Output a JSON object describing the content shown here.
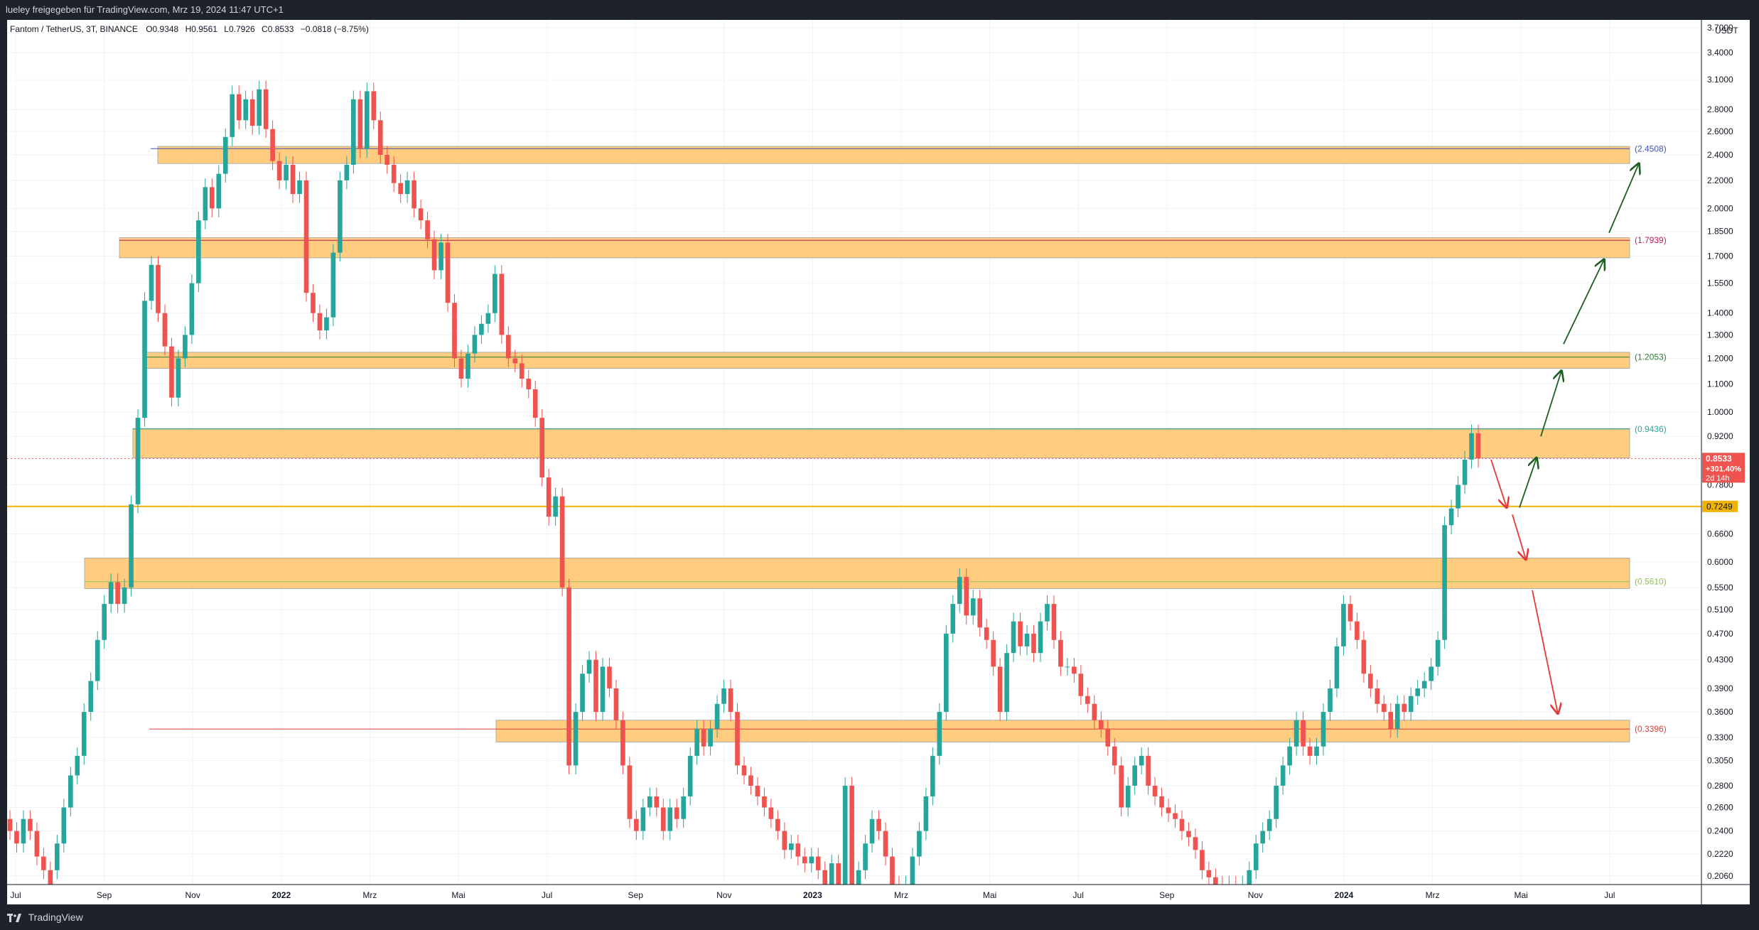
{
  "header": {
    "text": "lueley freigegeben für TradingView.com, Mrz 19, 2024 11:47 UTC+1"
  },
  "footer": {
    "brand": "TradingView"
  },
  "legend": {
    "symbol": "Fantom / TetherUS, 3T, BINANCE",
    "open": "O0.9348",
    "high": "H0.9561",
    "low": "L0.7926",
    "close": "C0.8533",
    "change": "−0.0818 (−8.75%)"
  },
  "price_tag": {
    "price": "0.8533",
    "change": "+301.40%",
    "countdown": "2d 14h"
  },
  "colors": {
    "up": "#26a69a",
    "down": "#ef5350",
    "zone": "#ffcc80",
    "hline": "#f0b400",
    "arrow_up": "#1b5e20",
    "arrow_down": "#e53935"
  },
  "chart_data": {
    "type": "candlestick",
    "currency": "USDT",
    "y_scale": "log",
    "ylim": [
      0.2,
      3.8
    ],
    "y_ticks": [
      "3.7000",
      "3.4000",
      "3.1000",
      "2.8000",
      "2.6000",
      "2.4000",
      "2.2000",
      "2.0000",
      "1.8500",
      "1.7000",
      "1.5500",
      "1.4000",
      "1.3000",
      "1.2000",
      "1.1000",
      "1.0000",
      "0.9200",
      "0.7800",
      "0.6600",
      "0.6000",
      "0.5500",
      "0.5100",
      "0.4700",
      "0.4300",
      "0.3900",
      "0.3600",
      "0.3300",
      "0.3050",
      "0.2800",
      "0.2600",
      "0.2400",
      "0.2220",
      "0.2060"
    ],
    "x_ticks": [
      "Jul",
      "Sep",
      "Nov",
      "2022",
      "Mrz",
      "Mai",
      "Jul",
      "Sep",
      "Nov",
      "2023",
      "Mrz",
      "Mai",
      "Jul",
      "Sep",
      "Nov",
      "2024",
      "Mrz",
      "Mai",
      "Jul"
    ],
    "levels": [
      {
        "label": "(2.4508)",
        "value": 2.4508,
        "color": "#3f51b5"
      },
      {
        "label": "(1.7939)",
        "value": 1.7939,
        "color": "#c2185b"
      },
      {
        "label": "(1.2053)",
        "value": 1.2053,
        "color": "#2e7d32"
      },
      {
        "label": "(0.9436)",
        "value": 0.9436,
        "color": "#26a69a"
      },
      {
        "label": "(0.5610)",
        "value": 0.561,
        "color": "#8bc34a"
      },
      {
        "label": "(0.3396)",
        "value": 0.3396,
        "color": "#e53935"
      }
    ],
    "zones": [
      {
        "low": 2.33,
        "high": 2.47
      },
      {
        "low": 1.69,
        "high": 1.81
      },
      {
        "low": 1.16,
        "high": 1.225
      },
      {
        "low": 0.855,
        "high": 0.945
      },
      {
        "low": 0.548,
        "high": 0.608
      },
      {
        "low": 0.325,
        "high": 0.35
      }
    ],
    "horizontal_line": {
      "label": "0.7249",
      "value": 0.7249
    },
    "last_price": 0.8533,
    "candles": [
      [
        0.25,
        0.24
      ],
      [
        0.24,
        0.23
      ],
      [
        0.23,
        0.25
      ],
      [
        0.25,
        0.24
      ],
      [
        0.24,
        0.22
      ],
      [
        0.22,
        0.21
      ],
      [
        0.21,
        0.2
      ],
      [
        0.21,
        0.23
      ],
      [
        0.23,
        0.26
      ],
      [
        0.26,
        0.29
      ],
      [
        0.29,
        0.31
      ],
      [
        0.31,
        0.36
      ],
      [
        0.36,
        0.4
      ],
      [
        0.4,
        0.46
      ],
      [
        0.46,
        0.52
      ],
      [
        0.52,
        0.56
      ],
      [
        0.56,
        0.52
      ],
      [
        0.52,
        0.55
      ],
      [
        0.55,
        0.73
      ],
      [
        0.73,
        0.98
      ],
      [
        0.98,
        1.46
      ],
      [
        1.46,
        1.65
      ],
      [
        1.65,
        1.4
      ],
      [
        1.4,
        1.25
      ],
      [
        1.25,
        1.05
      ],
      [
        1.05,
        1.2
      ],
      [
        1.2,
        1.3
      ],
      [
        1.3,
        1.55
      ],
      [
        1.55,
        1.92
      ],
      [
        1.92,
        2.15
      ],
      [
        2.15,
        2.0
      ],
      [
        2.0,
        2.25
      ],
      [
        2.25,
        2.55
      ],
      [
        2.55,
        2.95
      ],
      [
        2.95,
        2.7
      ],
      [
        2.7,
        2.9
      ],
      [
        2.9,
        2.65
      ],
      [
        2.65,
        3.0
      ],
      [
        3.0,
        2.62
      ],
      [
        2.62,
        2.35
      ],
      [
        2.35,
        2.2
      ],
      [
        2.2,
        2.32
      ],
      [
        2.32,
        2.1
      ],
      [
        2.1,
        2.2
      ],
      [
        2.2,
        1.5
      ],
      [
        1.5,
        1.4
      ],
      [
        1.4,
        1.32
      ],
      [
        1.32,
        1.38
      ],
      [
        1.38,
        1.72
      ],
      [
        1.72,
        2.2
      ],
      [
        2.2,
        2.32
      ],
      [
        2.32,
        2.9
      ],
      [
        2.9,
        2.45
      ],
      [
        2.45,
        2.98
      ],
      [
        2.98,
        2.7
      ],
      [
        2.7,
        2.4
      ],
      [
        2.4,
        2.32
      ],
      [
        2.32,
        2.18
      ],
      [
        2.18,
        2.1
      ],
      [
        2.1,
        2.2
      ],
      [
        2.2,
        2.0
      ],
      [
        2.0,
        1.92
      ],
      [
        1.92,
        1.8
      ],
      [
        1.8,
        1.62
      ],
      [
        1.62,
        1.78
      ],
      [
        1.78,
        1.45
      ],
      [
        1.45,
        1.2
      ],
      [
        1.2,
        1.12
      ],
      [
        1.12,
        1.22
      ],
      [
        1.22,
        1.3
      ],
      [
        1.3,
        1.35
      ],
      [
        1.35,
        1.4
      ],
      [
        1.4,
        1.6
      ],
      [
        1.6,
        1.3
      ],
      [
        1.3,
        1.2
      ],
      [
        1.2,
        1.18
      ],
      [
        1.18,
        1.12
      ],
      [
        1.12,
        1.08
      ],
      [
        1.08,
        0.98
      ],
      [
        0.98,
        0.8
      ],
      [
        0.8,
        0.7
      ],
      [
        0.7,
        0.75
      ],
      [
        0.75,
        0.55
      ],
      [
        0.55,
        0.3
      ],
      [
        0.3,
        0.36
      ],
      [
        0.36,
        0.41
      ],
      [
        0.41,
        0.43
      ],
      [
        0.43,
        0.36
      ],
      [
        0.36,
        0.42
      ],
      [
        0.42,
        0.39
      ],
      [
        0.39,
        0.35
      ],
      [
        0.35,
        0.3
      ],
      [
        0.3,
        0.25
      ],
      [
        0.25,
        0.24
      ],
      [
        0.24,
        0.26
      ],
      [
        0.26,
        0.27
      ],
      [
        0.27,
        0.26
      ],
      [
        0.26,
        0.24
      ],
      [
        0.24,
        0.26
      ],
      [
        0.26,
        0.25
      ],
      [
        0.25,
        0.27
      ],
      [
        0.27,
        0.31
      ],
      [
        0.31,
        0.34
      ],
      [
        0.34,
        0.32
      ],
      [
        0.32,
        0.34
      ],
      [
        0.34,
        0.37
      ],
      [
        0.37,
        0.39
      ],
      [
        0.39,
        0.36
      ],
      [
        0.36,
        0.3
      ],
      [
        0.3,
        0.29
      ],
      [
        0.29,
        0.28
      ],
      [
        0.28,
        0.27
      ],
      [
        0.27,
        0.26
      ],
      [
        0.26,
        0.25
      ],
      [
        0.25,
        0.24
      ],
      [
        0.24,
        0.225
      ],
      [
        0.225,
        0.23
      ],
      [
        0.23,
        0.22
      ],
      [
        0.22,
        0.215
      ],
      [
        0.215,
        0.22
      ],
      [
        0.22,
        0.21
      ],
      [
        0.21,
        0.2
      ],
      [
        0.2,
        0.215
      ],
      [
        0.215,
        0.2
      ],
      [
        0.2,
        0.28
      ],
      [
        0.28,
        0.2
      ],
      [
        0.2,
        0.21
      ],
      [
        0.21,
        0.23
      ],
      [
        0.23,
        0.25
      ],
      [
        0.25,
        0.24
      ],
      [
        0.24,
        0.22
      ],
      [
        0.22,
        0.2
      ],
      [
        0.2,
        0.195
      ],
      [
        0.195,
        0.2
      ],
      [
        0.2,
        0.22
      ],
      [
        0.22,
        0.24
      ],
      [
        0.24,
        0.27
      ],
      [
        0.27,
        0.31
      ],
      [
        0.31,
        0.36
      ],
      [
        0.36,
        0.47
      ],
      [
        0.47,
        0.52
      ],
      [
        0.52,
        0.57
      ],
      [
        0.57,
        0.5
      ],
      [
        0.5,
        0.53
      ],
      [
        0.53,
        0.48
      ],
      [
        0.48,
        0.46
      ],
      [
        0.46,
        0.42
      ],
      [
        0.42,
        0.36
      ],
      [
        0.36,
        0.44
      ],
      [
        0.44,
        0.49
      ],
      [
        0.49,
        0.45
      ],
      [
        0.45,
        0.47
      ],
      [
        0.47,
        0.44
      ],
      [
        0.44,
        0.49
      ],
      [
        0.49,
        0.52
      ],
      [
        0.52,
        0.46
      ],
      [
        0.46,
        0.42
      ],
      [
        0.42,
        0.42
      ],
      [
        0.42,
        0.41
      ],
      [
        0.41,
        0.38
      ],
      [
        0.38,
        0.37
      ],
      [
        0.37,
        0.35
      ],
      [
        0.35,
        0.34
      ],
      [
        0.34,
        0.32
      ],
      [
        0.32,
        0.3
      ],
      [
        0.3,
        0.26
      ],
      [
        0.26,
        0.28
      ],
      [
        0.28,
        0.3
      ],
      [
        0.3,
        0.31
      ],
      [
        0.31,
        0.28
      ],
      [
        0.28,
        0.27
      ],
      [
        0.27,
        0.26
      ],
      [
        0.26,
        0.255
      ],
      [
        0.255,
        0.25
      ],
      [
        0.25,
        0.24
      ],
      [
        0.24,
        0.235
      ],
      [
        0.235,
        0.225
      ],
      [
        0.225,
        0.21
      ],
      [
        0.21,
        0.205
      ],
      [
        0.205,
        0.2
      ],
      [
        0.2,
        0.195
      ],
      [
        0.195,
        0.2
      ],
      [
        0.2,
        0.19
      ],
      [
        0.19,
        0.2
      ],
      [
        0.2,
        0.21
      ],
      [
        0.21,
        0.23
      ],
      [
        0.23,
        0.24
      ],
      [
        0.24,
        0.25
      ],
      [
        0.25,
        0.28
      ],
      [
        0.28,
        0.3
      ],
      [
        0.3,
        0.32
      ],
      [
        0.32,
        0.35
      ],
      [
        0.35,
        0.32
      ],
      [
        0.32,
        0.31
      ],
      [
        0.31,
        0.32
      ],
      [
        0.32,
        0.36
      ],
      [
        0.36,
        0.39
      ],
      [
        0.39,
        0.45
      ],
      [
        0.45,
        0.52
      ],
      [
        0.52,
        0.49
      ],
      [
        0.49,
        0.46
      ],
      [
        0.46,
        0.41
      ],
      [
        0.41,
        0.39
      ],
      [
        0.39,
        0.37
      ],
      [
        0.37,
        0.36
      ],
      [
        0.36,
        0.34
      ],
      [
        0.34,
        0.37
      ],
      [
        0.37,
        0.36
      ],
      [
        0.36,
        0.38
      ],
      [
        0.38,
        0.39
      ],
      [
        0.39,
        0.4
      ],
      [
        0.4,
        0.42
      ],
      [
        0.42,
        0.46
      ],
      [
        0.46,
        0.68
      ],
      [
        0.68,
        0.72
      ],
      [
        0.72,
        0.78
      ],
      [
        0.78,
        0.85
      ],
      [
        0.85,
        0.93
      ],
      [
        0.93,
        0.8533
      ]
    ]
  }
}
